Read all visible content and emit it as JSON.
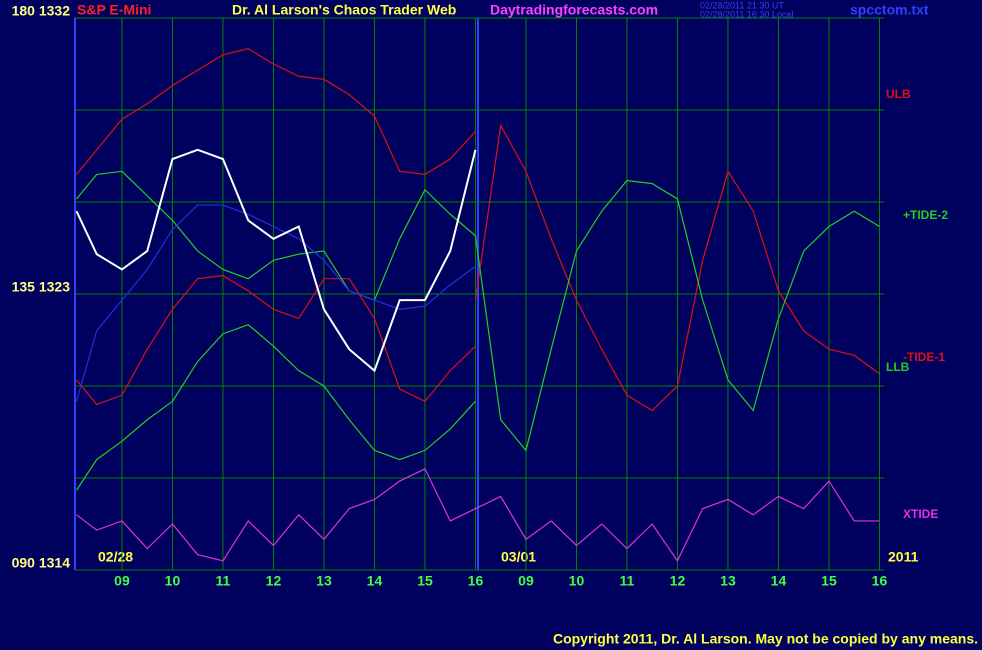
{
  "chart_data": {
    "type": "line",
    "title": "Dr. Al Larson's Chaos Trader Web",
    "symbol": "S&P E-Mini",
    "website": "Daytradingforecasts.com",
    "timestamps": [
      "02/28/2011 21:30 UT",
      "02/28/2011 16:30 Local"
    ],
    "file_name": "spcctom.txt",
    "copyright": "Copyright 2011, Dr. Al Larson. May not be copied by any means.",
    "date_labels": [
      "02/28",
      "03/01",
      "2011"
    ],
    "xlim": [
      -0.93,
      15.09
    ],
    "xticks": [
      {
        "value": 0,
        "label": "09"
      },
      {
        "value": 1,
        "label": "10"
      },
      {
        "value": 2,
        "label": "11"
      },
      {
        "value": 3,
        "label": "12"
      },
      {
        "value": 4,
        "label": "13"
      },
      {
        "value": 5,
        "label": "14"
      },
      {
        "value": 6,
        "label": "15"
      },
      {
        "value": 7,
        "label": "16"
      },
      {
        "value": 8,
        "label": "09"
      },
      {
        "value": 9,
        "label": "10"
      },
      {
        "value": 10,
        "label": "11"
      },
      {
        "value": 11,
        "label": "12"
      },
      {
        "value": 12,
        "label": "13"
      },
      {
        "value": 13,
        "label": "14"
      },
      {
        "value": 14,
        "label": "15"
      },
      {
        "value": 15,
        "label": "16"
      }
    ],
    "ylim": [
      1314,
      1332
    ],
    "yticks": [
      {
        "value": 1332,
        "label": "180  1332"
      },
      {
        "value": 1323,
        "label": "135  1323"
      },
      {
        "value": 1314,
        "label": "090  1314"
      }
    ],
    "ygrid": [
      1317,
      1320,
      1326,
      1329
    ],
    "grid": true,
    "series": [
      {
        "name": "ULB",
        "color": "#e01010",
        "x": [
          -0.9,
          -0.5,
          0,
          0.5,
          1,
          1.5,
          2,
          2.5,
          3,
          3.5,
          4,
          4.5,
          5,
          5.5,
          6,
          6.5,
          7
        ],
        "values": [
          1326.9,
          1327.7,
          1328.7,
          1329.2,
          1329.8,
          1330.3,
          1330.8,
          1331.0,
          1330.5,
          1330.1,
          1330.0,
          1329.5,
          1328.8,
          1327.0,
          1326.9,
          1327.4,
          1328.3
        ]
      },
      {
        "color": "#e01010",
        "x": [
          -0.9,
          -0.5,
          0,
          0.5,
          1,
          1.5,
          2,
          2.5,
          3,
          3.5,
          4,
          4.5,
          5,
          5.5,
          6,
          6.5,
          7
        ],
        "values": [
          1320.2,
          1319.4,
          1319.7,
          1321.2,
          1322.5,
          1323.5,
          1323.6,
          1323.1,
          1322.5,
          1322.2,
          1323.5,
          1323.5,
          1322.2,
          1319.9,
          1319.5,
          1320.5,
          1321.3
        ]
      },
      {
        "name": "-TIDE-1",
        "color": "#e01010",
        "x": [
          7,
          7.5,
          8,
          8.5,
          9,
          9.5,
          10,
          10.5,
          11,
          11.5,
          12,
          12.5,
          13,
          13.5,
          14,
          14.5,
          15
        ],
        "values": [
          1322.8,
          1328.5,
          1327.0,
          1324.8,
          1322.8,
          1321.2,
          1319.7,
          1319.2,
          1320.0,
          1324.1,
          1327.0,
          1325.7,
          1323.1,
          1321.8,
          1321.2,
          1321.0,
          1320.4
        ]
      },
      {
        "name": "+TIDE-2",
        "color": "#20d020",
        "x": [
          -0.9,
          -0.5,
          0,
          0.5,
          1,
          1.5,
          2,
          2.5,
          3,
          3.5,
          4,
          4.5,
          5,
          5.5,
          6,
          6.5,
          7,
          7.5,
          8,
          8.5,
          9,
          9.5,
          10,
          10.5,
          11,
          11.5,
          12,
          12.5,
          13,
          13.5,
          14,
          14.5,
          15
        ],
        "values": [
          1326.1,
          1326.9,
          1327.0,
          1326.2,
          1325.4,
          1324.4,
          1323.8,
          1323.5,
          1324.1,
          1324.3,
          1324.4,
          1323.1,
          1322.8,
          1324.8,
          1326.4,
          1325.6,
          1324.9,
          1318.9,
          1317.9,
          1321.2,
          1324.4,
          1325.7,
          1326.7,
          1326.6,
          1326.1,
          1322.8,
          1320.2,
          1319.2,
          1322.2,
          1324.4,
          1325.2,
          1325.7,
          1325.2
        ]
      },
      {
        "name": "LLB",
        "color": "#20d020",
        "x": [
          -0.9,
          -0.5,
          0,
          0.5,
          1,
          1.5,
          2,
          2.5,
          3,
          3.5,
          4,
          4.5,
          5,
          5.5,
          6,
          6.5,
          7
        ],
        "values": [
          1316.6,
          1317.6,
          1318.2,
          1318.9,
          1319.5,
          1320.8,
          1321.7,
          1322.0,
          1321.3,
          1320.5,
          1320.0,
          1318.9,
          1317.9,
          1317.6,
          1317.9,
          1318.6,
          1319.5
        ]
      },
      {
        "color": "#2030e0",
        "x": [
          -0.9,
          -0.5,
          0,
          0.5,
          1,
          1.5,
          2,
          2.5,
          3,
          3.5,
          4,
          4.5,
          5,
          5.5,
          6,
          6.5,
          7
        ],
        "values": [
          1319.5,
          1321.8,
          1322.8,
          1323.8,
          1325.1,
          1325.9,
          1325.9,
          1325.6,
          1325.2,
          1324.8,
          1324.1,
          1323.1,
          1322.8,
          1322.5,
          1322.6,
          1323.3,
          1323.9
        ]
      },
      {
        "color": "#ffffff",
        "x": [
          -0.9,
          -0.5,
          0,
          0.5,
          1,
          1.5,
          2,
          2.5,
          3,
          3.5,
          4,
          4.5,
          5,
          5.5,
          6,
          6.5,
          7
        ],
        "values": [
          1325.7,
          1324.3,
          1323.8,
          1324.4,
          1327.4,
          1327.7,
          1327.4,
          1325.4,
          1324.8,
          1325.2,
          1322.5,
          1321.2,
          1320.5,
          1322.8,
          1322.8,
          1324.4,
          1327.7
        ]
      },
      {
        "name": "XTIDE",
        "color": "#e030e0",
        "x": [
          -0.9,
          -0.5,
          0,
          0.5,
          1,
          1.5,
          2,
          2.5,
          3,
          3.5,
          4,
          4.5,
          5,
          5.5,
          6,
          6.5,
          7,
          7.5,
          8,
          8.5,
          9,
          9.5,
          10,
          10.5,
          11,
          11.5,
          12,
          12.5,
          13,
          13.5,
          14,
          14.5,
          15
        ],
        "values": [
          1315.8,
          1315.3,
          1315.6,
          1314.7,
          1315.5,
          1314.5,
          1314.3,
          1315.6,
          1314.8,
          1315.8,
          1315.0,
          1316.0,
          1316.3,
          1316.9,
          1317.3,
          1315.6,
          1316.0,
          1316.4,
          1315.0,
          1315.6,
          1314.8,
          1315.5,
          1314.7,
          1315.5,
          1314.3,
          1316.0,
          1316.3,
          1315.8,
          1316.4,
          1316.0,
          1316.9,
          1315.6,
          1315.6
        ]
      }
    ]
  }
}
